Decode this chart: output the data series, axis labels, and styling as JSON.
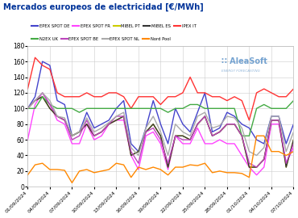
{
  "title": "Mercados europeos de electricidad [€/MWh]",
  "title_color": "#003399",
  "background_color": "#ffffff",
  "plot_bg_color": "#ffffff",
  "grid_color": "#cccccc",
  "ylim": [
    0,
    180
  ],
  "yticks": [
    0,
    20,
    40,
    60,
    80,
    100,
    120,
    140,
    160,
    180
  ],
  "xtick_labels": [
    "01/09/2024",
    "04/09/2024",
    "07/09/2024",
    "10/09/2024",
    "13/09/2024",
    "16/09/2024",
    "19/09/2024",
    "22/09/2024",
    "25/09/2024",
    "28/09/2024",
    "01/10/2024",
    "04/10/2024",
    "07/10/2024"
  ],
  "xtick_indices": [
    0,
    3,
    6,
    9,
    12,
    15,
    18,
    21,
    24,
    27,
    30,
    33,
    36
  ],
  "n_points": 37,
  "series": {
    "EPEX SPOT DE": {
      "color": "#4444cc",
      "lw": 1.0,
      "values": [
        100,
        115,
        160,
        155,
        110,
        105,
        65,
        70,
        95,
        75,
        80,
        85,
        100,
        110,
        55,
        45,
        75,
        110,
        80,
        55,
        100,
        80,
        70,
        95,
        120,
        70,
        75,
        95,
        90,
        80,
        75,
        60,
        55,
        90,
        90,
        55,
        80
      ]
    },
    "EPEX SPOT FR": {
      "color": "#ff44ff",
      "lw": 1.0,
      "values": [
        60,
        105,
        120,
        105,
        85,
        80,
        55,
        55,
        80,
        60,
        65,
        80,
        85,
        85,
        40,
        22,
        65,
        70,
        55,
        22,
        65,
        55,
        55,
        75,
        55,
        55,
        60,
        55,
        55,
        40,
        25,
        15,
        25,
        80,
        80,
        30,
        50
      ]
    },
    "MIBEL PT": {
      "color": "#cccc00",
      "lw": 1.0,
      "values": [
        100,
        110,
        115,
        100,
        90,
        85,
        65,
        70,
        80,
        65,
        70,
        80,
        85,
        90,
        40,
        45,
        70,
        80,
        65,
        25,
        65,
        65,
        60,
        80,
        90,
        65,
        70,
        80,
        80,
        65,
        25,
        25,
        35,
        85,
        85,
        25,
        60
      ]
    },
    "MIBEL ES": {
      "color": "#333333",
      "lw": 1.0,
      "values": [
        100,
        110,
        115,
        100,
        90,
        85,
        65,
        70,
        80,
        65,
        70,
        80,
        85,
        90,
        40,
        45,
        70,
        80,
        65,
        25,
        65,
        65,
        60,
        80,
        90,
        65,
        70,
        80,
        80,
        65,
        25,
        25,
        35,
        85,
        85,
        25,
        60
      ]
    },
    "IPEX IT": {
      "color": "#ff3333",
      "lw": 1.0,
      "values": [
        125,
        165,
        155,
        150,
        120,
        115,
        115,
        115,
        120,
        115,
        115,
        120,
        120,
        115,
        100,
        115,
        115,
        115,
        105,
        115,
        115,
        120,
        140,
        120,
        120,
        115,
        115,
        110,
        115,
        110,
        85,
        120,
        125,
        120,
        115,
        115,
        125
      ]
    },
    "N2EX UK": {
      "color": "#44aa44",
      "lw": 1.0,
      "values": [
        100,
        100,
        115,
        105,
        100,
        100,
        100,
        95,
        100,
        100,
        100,
        100,
        100,
        100,
        100,
        100,
        100,
        100,
        100,
        95,
        100,
        100,
        105,
        105,
        100,
        100,
        100,
        100,
        100,
        65,
        65,
        100,
        105,
        100,
        100,
        100,
        110
      ]
    },
    "EPEX SPOT BE": {
      "color": "#bb44bb",
      "lw": 1.0,
      "values": [
        100,
        110,
        120,
        105,
        90,
        85,
        60,
        65,
        85,
        65,
        70,
        80,
        90,
        90,
        45,
        30,
        70,
        75,
        60,
        30,
        65,
        60,
        60,
        80,
        90,
        65,
        70,
        80,
        80,
        65,
        30,
        25,
        35,
        85,
        85,
        30,
        55
      ]
    },
    "EPEX SPOT NL": {
      "color": "#aaaaaa",
      "lw": 1.0,
      "values": [
        100,
        110,
        120,
        110,
        90,
        88,
        65,
        70,
        88,
        70,
        75,
        82,
        90,
        95,
        50,
        40,
        75,
        90,
        70,
        40,
        80,
        70,
        65,
        90,
        95,
        75,
        78,
        90,
        88,
        75,
        45,
        40,
        50,
        90,
        90,
        45,
        70
      ]
    },
    "Nord Pool": {
      "color": "#ff8800",
      "lw": 1.0,
      "values": [
        15,
        28,
        30,
        22,
        22,
        21,
        5,
        20,
        22,
        18,
        20,
        22,
        30,
        28,
        12,
        25,
        22,
        25,
        22,
        15,
        25,
        25,
        28,
        27,
        30,
        18,
        20,
        18,
        18,
        17,
        12,
        65,
        65,
        45,
        45,
        40,
        45
      ]
    }
  },
  "legend_row1": [
    "EPEX SPOT DE",
    "EPEX SPOT FR",
    "MIBEL PT",
    "MIBEL ES",
    "IPEX IT"
  ],
  "legend_row2": [
    "N2EX UK",
    "EPEX SPOT BE",
    "EPEX SPOT NL",
    "Nord Pool"
  ],
  "watermark_text": "AleaSoft",
  "watermark_sub": "ENERGY FORECASTING",
  "watermark_color": "#6699cc",
  "aleasoft_color": "#003399"
}
